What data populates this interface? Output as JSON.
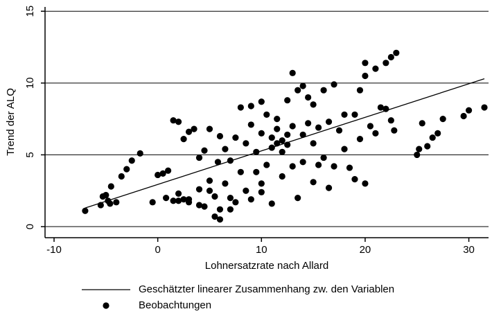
{
  "chart_data": {
    "type": "scatter",
    "xlabel": "Lohnersatzrate nach Allard",
    "ylabel": "Trend der ALQ",
    "xlim": [
      -10.87,
      31.9
    ],
    "xticks": [
      -10,
      0,
      10,
      20,
      30
    ],
    "ylim": [
      -0.77,
      15.3
    ],
    "yticks": [
      0,
      5,
      10,
      15
    ],
    "grid": true,
    "series": [
      {
        "name": "Geschätzter linearer Zusammenhang zw. den Variablen",
        "type": "line",
        "color": "#000000",
        "x": [
          -7,
          31.5
        ],
        "y": [
          1.3,
          10.3
        ]
      },
      {
        "name": "Beobachtungen",
        "type": "scatter",
        "color": "#000000",
        "x": [
          -7,
          -5.5,
          -5,
          -4.8,
          -4.5,
          -4,
          -3.5,
          -3,
          -2.5,
          -1.7,
          -5.3,
          -4.6,
          -0.5,
          0,
          0.5,
          1,
          0.8,
          1.5,
          2,
          2.5,
          1.5,
          2,
          2.5,
          3,
          3.5,
          3,
          4,
          4.5,
          4.5,
          4,
          5,
          5,
          5.5,
          5.5,
          6,
          5.8,
          6,
          6.5,
          6.5,
          7,
          7,
          7.5,
          7.5,
          8,
          8,
          8.5,
          8.5,
          9,
          9,
          9.5,
          9.5,
          10,
          10,
          10,
          10.5,
          10.5,
          11,
          11,
          11,
          11.5,
          11.5,
          11.5,
          12,
          12,
          12,
          12.5,
          12.5,
          12.5,
          13,
          13,
          13,
          13.5,
          13.5,
          14,
          14,
          14,
          14.5,
          14.5,
          15,
          15,
          15,
          15.5,
          15.5,
          16,
          16,
          16.5,
          16.5,
          17,
          17,
          17.5,
          18,
          18,
          18.5,
          19,
          19,
          19.5,
          19.5,
          20,
          20,
          20,
          20.5,
          21,
          21,
          21.5,
          22,
          22,
          22.5,
          22.5,
          23,
          22.8,
          25,
          25.2,
          25.5,
          26,
          26.5,
          27,
          27.5,
          29.5,
          30,
          31.5,
          3,
          2,
          4,
          6,
          5,
          7,
          9,
          10
        ],
        "y": [
          1.1,
          1.5,
          2.2,
          1.8,
          2.8,
          1.7,
          3.5,
          4,
          4.6,
          5.1,
          2.1,
          1.6,
          1.7,
          3.6,
          3.7,
          3.9,
          2,
          1.8,
          2.3,
          1.9,
          7.4,
          7.3,
          6.1,
          6.6,
          6.8,
          1.7,
          2.6,
          1.4,
          5.3,
          4.8,
          6.8,
          3.2,
          2.1,
          0.7,
          1.2,
          4.5,
          6.3,
          3,
          5.4,
          2,
          4.6,
          1.7,
          6.2,
          3.8,
          8.3,
          2.5,
          5.8,
          7.1,
          8.4,
          3.8,
          5.2,
          2.4,
          6.5,
          8.7,
          4.3,
          7.8,
          5.5,
          6.2,
          1.6,
          5.8,
          6.8,
          7.5,
          6,
          5.2,
          3.5,
          6.4,
          5.7,
          8.8,
          7,
          10.7,
          4.2,
          9.5,
          2,
          9.8,
          6.4,
          4.5,
          7.2,
          9,
          8.5,
          5.8,
          3.1,
          4.3,
          6.9,
          9.5,
          4.8,
          2.7,
          7.3,
          9.9,
          4.2,
          6.7,
          7.8,
          5.4,
          4.1,
          3.3,
          7.8,
          6.1,
          9.5,
          3,
          10.5,
          11.4,
          7,
          6.5,
          11,
          8.3,
          8.2,
          11.4,
          7.4,
          11.8,
          12.1,
          6.7,
          5,
          5.4,
          7.2,
          5.6,
          6.2,
          6.5,
          7.5,
          7.7,
          8.1,
          8.3,
          1.9,
          1.8,
          1.5,
          0.5,
          2.5,
          1.2,
          1.9,
          3
        ]
      }
    ]
  }
}
